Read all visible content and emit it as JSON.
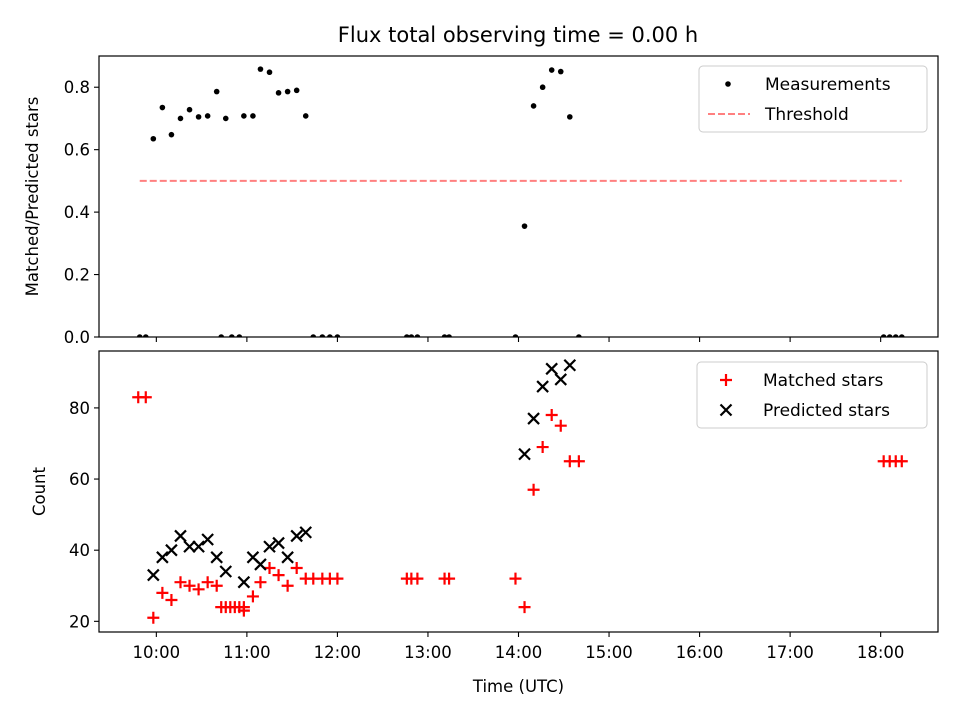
{
  "chart_data": [
    {
      "type": "scatter",
      "title": "Flux total observing time = 0.00 h",
      "ylabel": "Matched/Predicted stars",
      "xlabel": "",
      "xlim": [
        "09:22",
        "18:38"
      ],
      "ylim": [
        0,
        0.9
      ],
      "yticks": [
        0.0,
        0.2,
        0.4,
        0.6,
        0.8
      ],
      "ytick_labels": [
        "0.0",
        "0.2",
        "0.4",
        "0.6",
        "0.8"
      ],
      "legend_position": "top-right",
      "series": [
        {
          "name": "Measurements",
          "marker": "dot",
          "color": "#000000",
          "points": [
            [
              "09:49",
              0.0
            ],
            [
              "09:53",
              0.0
            ],
            [
              "09:58",
              0.635
            ],
            [
              "10:04",
              0.735
            ],
            [
              "10:10",
              0.648
            ],
            [
              "10:16",
              0.7
            ],
            [
              "10:22",
              0.728
            ],
            [
              "10:28",
              0.705
            ],
            [
              "10:34",
              0.708
            ],
            [
              "10:40",
              0.786
            ],
            [
              "10:46",
              0.7
            ],
            [
              "10:43",
              0.0
            ],
            [
              "10:50",
              0.0
            ],
            [
              "10:55",
              0.0
            ],
            [
              "10:58",
              0.708
            ],
            [
              "11:04",
              0.708
            ],
            [
              "11:09",
              0.858
            ],
            [
              "11:15",
              0.848
            ],
            [
              "11:21",
              0.782
            ],
            [
              "11:27",
              0.786
            ],
            [
              "11:33",
              0.79
            ],
            [
              "11:39",
              0.708
            ],
            [
              "11:44",
              0.0
            ],
            [
              "11:50",
              0.0
            ],
            [
              "11:55",
              0.0
            ],
            [
              "12:00",
              0.0
            ],
            [
              "12:46",
              0.0
            ],
            [
              "12:49",
              0.0
            ],
            [
              "12:53",
              0.0
            ],
            [
              "13:11",
              0.0
            ],
            [
              "13:14",
              0.0
            ],
            [
              "13:58",
              0.0
            ],
            [
              "14:04",
              0.355
            ],
            [
              "14:10",
              0.74
            ],
            [
              "14:16",
              0.8
            ],
            [
              "14:22",
              0.855
            ],
            [
              "14:28",
              0.85
            ],
            [
              "14:34",
              0.705
            ],
            [
              "14:40",
              0.0
            ],
            [
              "18:02",
              0.0
            ],
            [
              "18:06",
              0.0
            ],
            [
              "18:10",
              0.0
            ],
            [
              "18:14",
              0.0
            ]
          ]
        },
        {
          "name": "Threshold",
          "style": "dashed",
          "color": "#ff8080",
          "points": [
            [
              "09:49",
              0.5
            ],
            [
              "18:14",
              0.5
            ]
          ]
        }
      ]
    },
    {
      "type": "scatter",
      "title": "",
      "ylabel": "Count",
      "xlabel": "Time (UTC)",
      "xlim": [
        "09:22",
        "18:38"
      ],
      "ylim": [
        17,
        96
      ],
      "yticks": [
        20,
        40,
        60,
        80
      ],
      "ytick_labels": [
        "20",
        "40",
        "60",
        "80"
      ],
      "xticks": [
        "10:00",
        "11:00",
        "12:00",
        "13:00",
        "14:00",
        "15:00",
        "16:00",
        "17:00",
        "18:00"
      ],
      "xtick_labels": [
        "10:00",
        "11:00",
        "12:00",
        "13:00",
        "14:00",
        "15:00",
        "16:00",
        "17:00",
        "18:00"
      ],
      "legend_position": "top-right",
      "series": [
        {
          "name": "Matched stars",
          "marker": "plus",
          "color": "#ff0000",
          "points": [
            [
              "09:48",
              83
            ],
            [
              "09:53",
              83
            ],
            [
              "09:58",
              21
            ],
            [
              "10:04",
              28
            ],
            [
              "10:10",
              26
            ],
            [
              "10:16",
              31
            ],
            [
              "10:22",
              30
            ],
            [
              "10:28",
              29
            ],
            [
              "10:34",
              31
            ],
            [
              "10:40",
              30
            ],
            [
              "10:46",
              24
            ],
            [
              "10:52",
              24
            ],
            [
              "10:58",
              24
            ],
            [
              "10:43",
              24
            ],
            [
              "10:49",
              24
            ],
            [
              "10:55",
              24
            ],
            [
              "10:58",
              23
            ],
            [
              "11:04",
              27
            ],
            [
              "11:09",
              31
            ],
            [
              "11:15",
              35
            ],
            [
              "11:21",
              33
            ],
            [
              "11:27",
              30
            ],
            [
              "11:33",
              35
            ],
            [
              "11:39",
              32
            ],
            [
              "11:44",
              32
            ],
            [
              "11:50",
              32
            ],
            [
              "11:55",
              32
            ],
            [
              "12:00",
              32
            ],
            [
              "12:46",
              32
            ],
            [
              "12:49",
              32
            ],
            [
              "12:53",
              32
            ],
            [
              "13:11",
              32
            ],
            [
              "13:14",
              32
            ],
            [
              "13:58",
              32
            ],
            [
              "14:04",
              24
            ],
            [
              "14:10",
              57
            ],
            [
              "14:16",
              69
            ],
            [
              "14:22",
              78
            ],
            [
              "14:28",
              75
            ],
            [
              "14:34",
              65
            ],
            [
              "14:40",
              65
            ],
            [
              "18:02",
              65
            ],
            [
              "18:06",
              65
            ],
            [
              "18:10",
              65
            ],
            [
              "18:14",
              65
            ]
          ]
        },
        {
          "name": "Predicted stars",
          "marker": "x",
          "color": "#000000",
          "points": [
            [
              "09:58",
              33
            ],
            [
              "10:04",
              38
            ],
            [
              "10:10",
              40
            ],
            [
              "10:16",
              44
            ],
            [
              "10:22",
              41
            ],
            [
              "10:28",
              41
            ],
            [
              "10:34",
              43
            ],
            [
              "10:40",
              38
            ],
            [
              "10:46",
              34
            ],
            [
              "10:58",
              31
            ],
            [
              "11:04",
              38
            ],
            [
              "11:09",
              36
            ],
            [
              "11:15",
              41
            ],
            [
              "11:21",
              42
            ],
            [
              "11:27",
              38
            ],
            [
              "11:33",
              44
            ],
            [
              "11:39",
              45
            ],
            [
              "14:04",
              67
            ],
            [
              "14:10",
              77
            ],
            [
              "14:16",
              86
            ],
            [
              "14:22",
              91
            ],
            [
              "14:28",
              88
            ],
            [
              "14:34",
              92
            ]
          ]
        }
      ]
    }
  ]
}
